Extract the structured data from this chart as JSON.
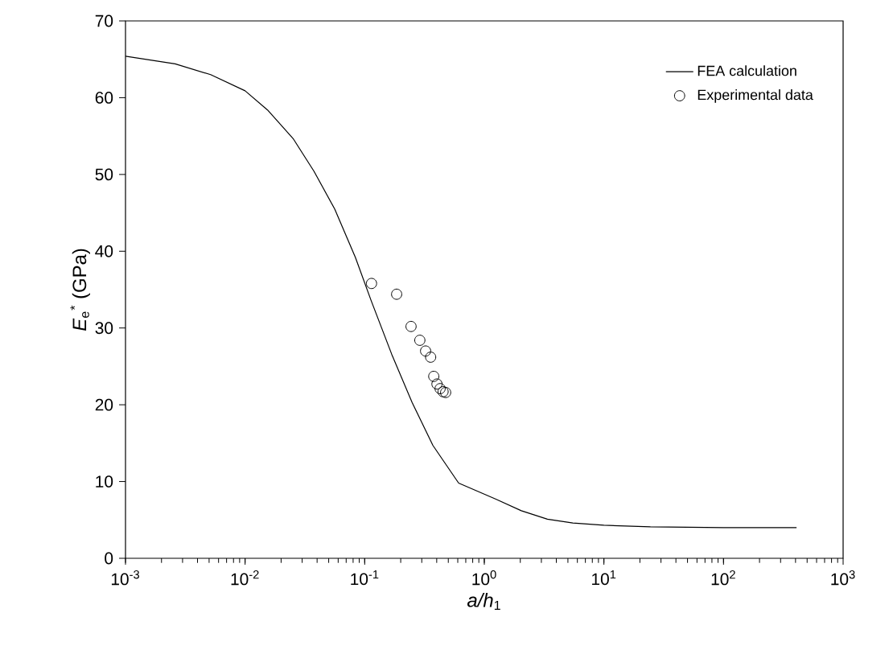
{
  "chart_data": {
    "type": "line",
    "xlabel": "*a/h*$_{1}$",
    "ylabel": "*E*$_{e}$$^{*}$ (GPa)",
    "log": "x",
    "xlim": [
      0.001,
      1000
    ],
    "ylim": [
      0,
      70
    ],
    "xticks": [
      {
        "value": 0.001,
        "label": "10$^{-3}$"
      },
      {
        "value": 0.01,
        "label": "10$^{-2}$"
      },
      {
        "value": 0.1,
        "label": "10$^{-1}$"
      },
      {
        "value": 1,
        "label": "10$^{0}$"
      },
      {
        "value": 10,
        "label": "10$^{1}$"
      },
      {
        "value": 100,
        "label": "10$^{2}$"
      },
      {
        "value": 1000,
        "label": "10$^{3}$"
      }
    ],
    "yticks": [
      0,
      10,
      20,
      30,
      40,
      50,
      60,
      70
    ],
    "grid": false,
    "legend": "top right",
    "series": [
      {
        "name": "FEA calculation",
        "color": "#000000",
        "marker": "none",
        "line_style": "solid",
        "x": [
          0.001,
          0.0026,
          0.00515,
          0.01,
          0.0154,
          0.0254,
          0.0377,
          0.0561,
          0.0836,
          0.113,
          0.168,
          0.249,
          0.372,
          0.61,
          1.25,
          2.04,
          3.37,
          5.5,
          10,
          24.5,
          100,
          408
        ],
        "values": [
          65.4,
          64.4,
          63.0,
          60.9,
          58.4,
          54.6,
          50.4,
          45.5,
          39.2,
          33.6,
          26.6,
          20.3,
          14.7,
          9.8,
          7.7,
          6.2,
          5.1,
          4.6,
          4.3,
          4.1,
          4.0,
          4.0
        ]
      },
      {
        "name": "Experimental data",
        "type": "scatter",
        "color": "#000000",
        "marker": "circle",
        "x": [
          0.114,
          0.185,
          0.244,
          0.289,
          0.323,
          0.356,
          0.378,
          0.402,
          0.427,
          0.452,
          0.475
        ],
        "values": [
          35.8,
          34.4,
          30.2,
          28.4,
          27.0,
          26.2,
          23.7,
          22.7,
          22.1,
          21.7,
          21.6
        ]
      }
    ]
  }
}
